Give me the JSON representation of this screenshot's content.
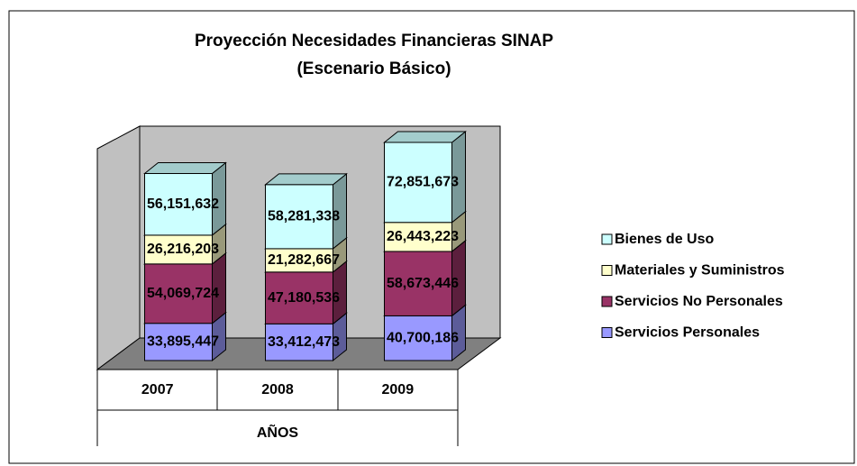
{
  "chart_data": {
    "type": "bar3d_stacked",
    "title": "Proyección Necesidades Financieras SINAP",
    "subtitle": "(Escenario Básico)",
    "x_label": "AÑOS",
    "categories": [
      "2007",
      "2008",
      "2009"
    ],
    "legend": "right",
    "series": [
      {
        "name": "Servicios Personales",
        "color": "#9999ff",
        "values": [
          33895447,
          33412473,
          40700186
        ],
        "value_labels": [
          "33,895,447",
          "33,412,473",
          "40,700,186"
        ]
      },
      {
        "name": "Servicios No Personales",
        "color": "#993366",
        "values": [
          54069724,
          47180536,
          58673446
        ],
        "value_labels": [
          "54,069,724",
          "47,180,536",
          "58,673,446"
        ]
      },
      {
        "name": "Materiales y Suministros",
        "color": "#ffffcc",
        "values": [
          26216203,
          21282667,
          26443223
        ],
        "value_labels": [
          "26,216,203",
          "21,282,667",
          "26,443,223"
        ]
      },
      {
        "name": "Bienes de Uso",
        "color": "#ccffff",
        "values": [
          56151632,
          58281338,
          72851673
        ],
        "value_labels": [
          "56,151,632",
          "58,281,338",
          "72,851,673"
        ]
      }
    ]
  }
}
